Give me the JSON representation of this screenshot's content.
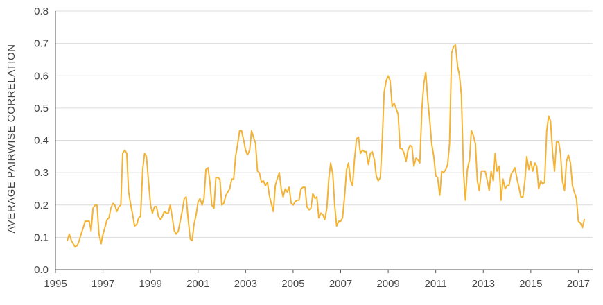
{
  "chart_data": {
    "type": "line",
    "title": "",
    "xlabel": "",
    "ylabel": "AVERAGE PAIRWISE CORRELATION",
    "xlim": [
      1995,
      2017.6
    ],
    "ylim": [
      0,
      0.8
    ],
    "grid": true,
    "x_ticks": [
      1995,
      1997,
      1999,
      2001,
      2003,
      2005,
      2007,
      2009,
      2011,
      2013,
      2015,
      2017
    ],
    "x_tick_labels": [
      "1995",
      "1997",
      "1999",
      "2001",
      "2003",
      "2005",
      "2007",
      "2009",
      "2011",
      "2013",
      "2015",
      "2017"
    ],
    "y_ticks": [
      0,
      0.1,
      0.2,
      0.3,
      0.4,
      0.5,
      0.6,
      0.7,
      0.8
    ],
    "y_tick_labels": [
      "0.0",
      "0.1",
      "0.2",
      "0.3",
      "0.4",
      "0.5",
      "0.6",
      "0.7",
      "0.8"
    ],
    "line_color": "#f5b335",
    "series": [
      {
        "x": [
          1995.5,
          1995.58,
          1995.67,
          1995.75,
          1995.83,
          1995.92,
          1996.0,
          1996.08,
          1996.17,
          1996.25,
          1996.33,
          1996.42,
          1996.5,
          1996.58,
          1996.67,
          1996.75,
          1996.83,
          1996.92,
          1997.0,
          1997.08,
          1997.17,
          1997.25,
          1997.33,
          1997.42,
          1997.5,
          1997.58,
          1997.67,
          1997.75,
          1997.83,
          1997.92,
          1998.0,
          1998.08,
          1998.17,
          1998.25,
          1998.33,
          1998.42,
          1998.5,
          1998.58,
          1998.67,
          1998.75,
          1998.83,
          1998.92,
          1999.0,
          1999.08,
          1999.17,
          1999.25,
          1999.33,
          1999.42,
          1999.5,
          1999.58,
          1999.67,
          1999.75,
          1999.83,
          1999.92,
          2000.0,
          2000.08,
          2000.17,
          2000.25,
          2000.33,
          2000.42,
          2000.5,
          2000.58,
          2000.67,
          2000.75,
          2000.83,
          2000.92,
          2001.0,
          2001.08,
          2001.17,
          2001.25,
          2001.33,
          2001.42,
          2001.5,
          2001.58,
          2001.67,
          2001.75,
          2001.83,
          2001.92,
          2002.0,
          2002.08,
          2002.17,
          2002.25,
          2002.33,
          2002.42,
          2002.5,
          2002.58,
          2002.67,
          2002.75,
          2002.83,
          2002.92,
          2003.0,
          2003.08,
          2003.17,
          2003.25,
          2003.33,
          2003.42,
          2003.5,
          2003.58,
          2003.67,
          2003.75,
          2003.83,
          2003.92,
          2004.0,
          2004.08,
          2004.17,
          2004.25,
          2004.33,
          2004.42,
          2004.5,
          2004.58,
          2004.67,
          2004.75,
          2004.83,
          2004.92,
          2005.0,
          2005.08,
          2005.17,
          2005.25,
          2005.33,
          2005.42,
          2005.5,
          2005.58,
          2005.67,
          2005.75,
          2005.83,
          2005.92,
          2006.0,
          2006.08,
          2006.17,
          2006.25,
          2006.33,
          2006.42,
          2006.5,
          2006.58,
          2006.67,
          2006.75,
          2006.83,
          2006.92,
          2007.0,
          2007.08,
          2007.17,
          2007.25,
          2007.33,
          2007.42,
          2007.5,
          2007.58,
          2007.67,
          2007.75,
          2007.83,
          2007.92,
          2008.0,
          2008.08,
          2008.17,
          2008.25,
          2008.33,
          2008.42,
          2008.5,
          2008.58,
          2008.67,
          2008.75,
          2008.83,
          2008.92,
          2009.0,
          2009.08,
          2009.17,
          2009.25,
          2009.33,
          2009.42,
          2009.5,
          2009.58,
          2009.67,
          2009.75,
          2009.83,
          2009.92,
          2010.0,
          2010.08,
          2010.17,
          2010.25,
          2010.33,
          2010.42,
          2010.5,
          2010.58,
          2010.67,
          2010.75,
          2010.83,
          2010.92,
          2011.0,
          2011.08,
          2011.17,
          2011.25,
          2011.33,
          2011.42,
          2011.5,
          2011.58,
          2011.67,
          2011.75,
          2011.83,
          2011.92,
          2012.0,
          2012.08,
          2012.17,
          2012.25,
          2012.33,
          2012.42,
          2012.5,
          2012.58,
          2012.67,
          2012.75,
          2012.83,
          2012.92,
          2013.0,
          2013.08,
          2013.17,
          2013.25,
          2013.33,
          2013.42,
          2013.5,
          2013.58,
          2013.67,
          2013.75,
          2013.83,
          2013.92,
          2014.0,
          2014.08,
          2014.17,
          2014.25,
          2014.33,
          2014.42,
          2014.5,
          2014.58,
          2014.67,
          2014.75,
          2014.83,
          2014.92,
          2015.0,
          2015.08,
          2015.17,
          2015.25,
          2015.33,
          2015.42,
          2015.5,
          2015.58,
          2015.67,
          2015.75,
          2015.83,
          2015.92,
          2016.0,
          2016.08,
          2016.17,
          2016.25,
          2016.33,
          2016.42,
          2016.5,
          2016.58,
          2016.67,
          2016.75,
          2016.83,
          2016.92,
          2017.0,
          2017.08,
          2017.17,
          2017.25
        ],
        "y": [
          0.09,
          0.11,
          0.09,
          0.08,
          0.07,
          0.075,
          0.09,
          0.11,
          0.13,
          0.15,
          0.15,
          0.15,
          0.12,
          0.19,
          0.2,
          0.2,
          0.11,
          0.08,
          0.11,
          0.13,
          0.155,
          0.16,
          0.19,
          0.205,
          0.2,
          0.18,
          0.195,
          0.2,
          0.36,
          0.37,
          0.36,
          0.24,
          0.2,
          0.17,
          0.135,
          0.14,
          0.16,
          0.165,
          0.31,
          0.36,
          0.35,
          0.27,
          0.2,
          0.175,
          0.195,
          0.195,
          0.165,
          0.155,
          0.165,
          0.18,
          0.175,
          0.175,
          0.2,
          0.16,
          0.12,
          0.11,
          0.12,
          0.15,
          0.18,
          0.22,
          0.225,
          0.16,
          0.095,
          0.09,
          0.14,
          0.17,
          0.21,
          0.22,
          0.2,
          0.22,
          0.31,
          0.315,
          0.27,
          0.2,
          0.19,
          0.285,
          0.285,
          0.28,
          0.2,
          0.205,
          0.23,
          0.24,
          0.25,
          0.28,
          0.28,
          0.35,
          0.39,
          0.43,
          0.43,
          0.4,
          0.37,
          0.355,
          0.37,
          0.43,
          0.41,
          0.39,
          0.305,
          0.3,
          0.27,
          0.275,
          0.26,
          0.27,
          0.23,
          0.205,
          0.18,
          0.26,
          0.28,
          0.3,
          0.25,
          0.225,
          0.25,
          0.24,
          0.255,
          0.205,
          0.2,
          0.21,
          0.215,
          0.215,
          0.25,
          0.255,
          0.255,
          0.195,
          0.185,
          0.19,
          0.235,
          0.22,
          0.225,
          0.16,
          0.175,
          0.17,
          0.155,
          0.19,
          0.28,
          0.33,
          0.295,
          0.2,
          0.135,
          0.15,
          0.15,
          0.16,
          0.23,
          0.31,
          0.33,
          0.275,
          0.26,
          0.34,
          0.405,
          0.41,
          0.36,
          0.37,
          0.365,
          0.365,
          0.325,
          0.36,
          0.365,
          0.34,
          0.29,
          0.275,
          0.285,
          0.4,
          0.55,
          0.585,
          0.6,
          0.585,
          0.505,
          0.515,
          0.5,
          0.48,
          0.375,
          0.375,
          0.36,
          0.335,
          0.37,
          0.385,
          0.38,
          0.32,
          0.345,
          0.34,
          0.33,
          0.5,
          0.575,
          0.61,
          0.52,
          0.46,
          0.39,
          0.35,
          0.29,
          0.285,
          0.23,
          0.305,
          0.3,
          0.31,
          0.325,
          0.39,
          0.67,
          0.69,
          0.695,
          0.63,
          0.6,
          0.54,
          0.3,
          0.215,
          0.31,
          0.34,
          0.43,
          0.415,
          0.39,
          0.275,
          0.245,
          0.305,
          0.305,
          0.305,
          0.275,
          0.245,
          0.305,
          0.275,
          0.36,
          0.305,
          0.32,
          0.215,
          0.28,
          0.25,
          0.26,
          0.26,
          0.295,
          0.305,
          0.315,
          0.28,
          0.255,
          0.225,
          0.225,
          0.275,
          0.35,
          0.31,
          0.335,
          0.305,
          0.33,
          0.32,
          0.25,
          0.275,
          0.265,
          0.27,
          0.43,
          0.475,
          0.46,
          0.36,
          0.305,
          0.395,
          0.395,
          0.36,
          0.275,
          0.245,
          0.335,
          0.355,
          0.33,
          0.26,
          0.24,
          0.22,
          0.15,
          0.145,
          0.13,
          0.155
        ]
      }
    ]
  }
}
